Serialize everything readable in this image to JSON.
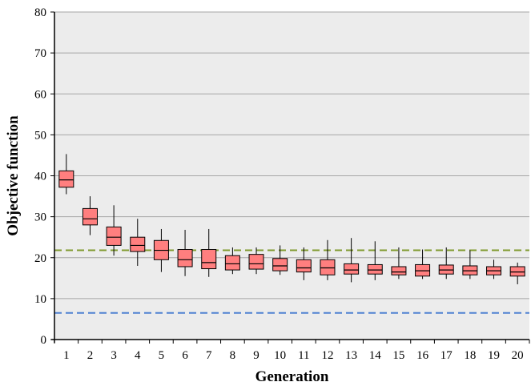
{
  "chart_data": {
    "type": "box",
    "title": "",
    "xlabel": "Generation",
    "ylabel": "Objective function",
    "ylim": [
      0,
      80
    ],
    "yticks": [
      0,
      10,
      20,
      30,
      40,
      50,
      60,
      70,
      80
    ],
    "grid": true,
    "legend": "none",
    "categories": [
      "1",
      "2",
      "3",
      "4",
      "5",
      "6",
      "7",
      "8",
      "9",
      "10",
      "11",
      "12",
      "13",
      "14",
      "15",
      "16",
      "17",
      "18",
      "19",
      "20"
    ],
    "boxes": [
      {
        "min": 35.5,
        "q1": 37.2,
        "median": 39.0,
        "q3": 41.2,
        "max": 45.3
      },
      {
        "min": 25.5,
        "q1": 28.0,
        "median": 29.5,
        "q3": 32.0,
        "max": 35.0
      },
      {
        "min": 20.5,
        "q1": 23.0,
        "median": 25.0,
        "q3": 27.5,
        "max": 32.8
      },
      {
        "min": 18.0,
        "q1": 21.5,
        "median": 23.0,
        "q3": 25.0,
        "max": 29.5
      },
      {
        "min": 16.5,
        "q1": 19.5,
        "median": 21.8,
        "q3": 24.2,
        "max": 27.0
      },
      {
        "min": 15.5,
        "q1": 17.8,
        "median": 19.5,
        "q3": 22.0,
        "max": 26.8
      },
      {
        "min": 15.3,
        "q1": 17.3,
        "median": 18.8,
        "q3": 22.0,
        "max": 27.0
      },
      {
        "min": 16.0,
        "q1": 17.0,
        "median": 18.5,
        "q3": 20.5,
        "max": 22.5
      },
      {
        "min": 16.0,
        "q1": 17.2,
        "median": 18.5,
        "q3": 20.8,
        "max": 22.5
      },
      {
        "min": 15.8,
        "q1": 16.8,
        "median": 18.0,
        "q3": 19.8,
        "max": 23.0
      },
      {
        "min": 14.5,
        "q1": 16.5,
        "median": 17.5,
        "q3": 19.5,
        "max": 22.5
      },
      {
        "min": 14.5,
        "q1": 15.8,
        "median": 17.5,
        "q3": 19.5,
        "max": 24.3
      },
      {
        "min": 14.0,
        "q1": 16.0,
        "median": 17.0,
        "q3": 18.5,
        "max": 24.8
      },
      {
        "min": 14.5,
        "q1": 16.0,
        "median": 17.0,
        "q3": 18.3,
        "max": 24.0
      },
      {
        "min": 14.8,
        "q1": 15.8,
        "median": 16.5,
        "q3": 17.8,
        "max": 22.5
      },
      {
        "min": 14.8,
        "q1": 15.5,
        "median": 16.8,
        "q3": 18.3,
        "max": 22.0
      },
      {
        "min": 14.8,
        "q1": 16.0,
        "median": 17.0,
        "q3": 18.2,
        "max": 22.5
      },
      {
        "min": 14.8,
        "q1": 15.8,
        "median": 16.8,
        "q3": 18.0,
        "max": 21.8
      },
      {
        "min": 14.8,
        "q1": 15.8,
        "median": 16.8,
        "q3": 17.8,
        "max": 19.5
      },
      {
        "min": 13.5,
        "q1": 15.5,
        "median": 16.5,
        "q3": 17.8,
        "max": 18.8
      }
    ],
    "reference_lines": [
      {
        "value": 21.8,
        "color": "#7f9a2e",
        "style": "dashed"
      },
      {
        "value": 6.5,
        "color": "#4f81d1",
        "style": "dashed"
      }
    ],
    "colors": {
      "box_fill": "#ff7f7f",
      "box_stroke": "#000000",
      "plot_background": "#ececec",
      "grid": "#a6a6a6"
    }
  }
}
